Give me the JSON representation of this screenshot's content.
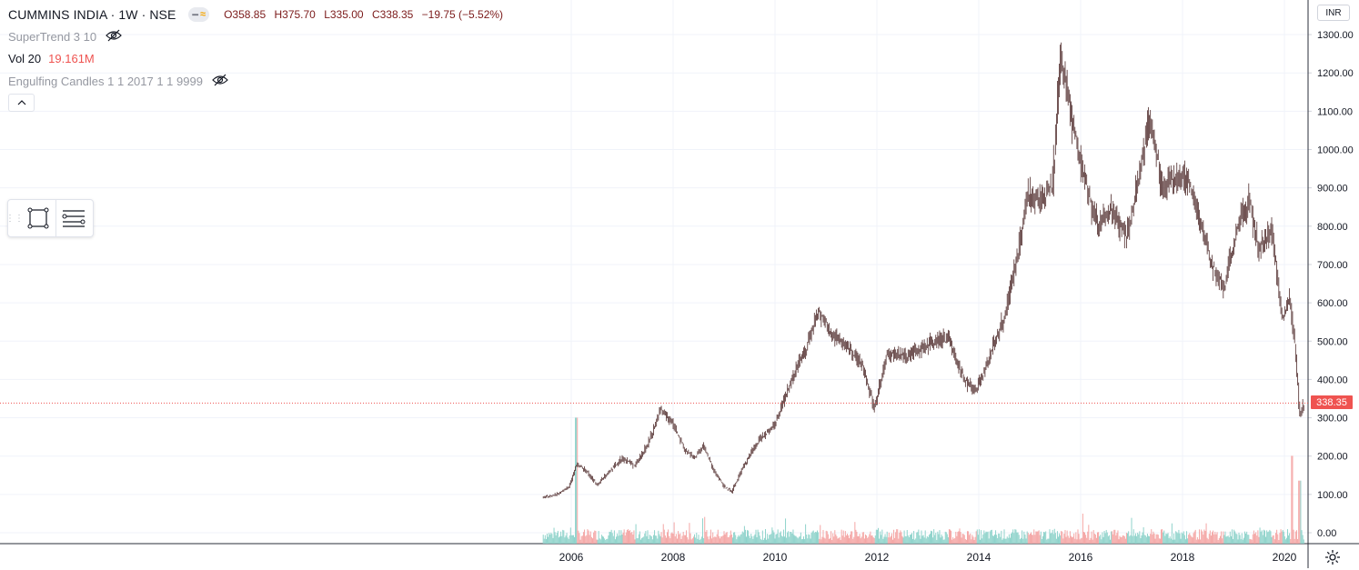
{
  "header": {
    "title": "CUMMINS INDIA · 1W · NSE",
    "ohlc": {
      "open": "O358.85",
      "high": "H375.70",
      "low": "L335.00",
      "close": "C338.35",
      "change": "−19.75 (−5.52%)"
    }
  },
  "indicators": {
    "supertrend": "SuperTrend 3 10",
    "vol_label": "Vol 20",
    "vol_value": "19.161M",
    "engulfing": "Engulfing Candles 1 1 2017 1 1 9999"
  },
  "price_axis": {
    "currency": "INR",
    "ticks": [
      "1300.00",
      "1200.00",
      "1100.00",
      "1000.00",
      "900.00",
      "800.00",
      "700.00",
      "600.00",
      "500.00",
      "400.00",
      "300.00",
      "200.00",
      "100.00",
      "0.00"
    ],
    "last_price": "338.35"
  },
  "time_axis": {
    "ticks": [
      "2006",
      "2008",
      "2010",
      "2012",
      "2014",
      "2016",
      "2018",
      "2020"
    ]
  },
  "colors": {
    "up": "#26a69a",
    "down": "#ef5350",
    "candle": "#4e2a2a",
    "last_line": "#ef5350",
    "grid": "#f0f3fa"
  },
  "icons": {
    "hide": "eye-off-icon",
    "collapse": "chevron-up-icon",
    "rect": "rectangle-tool-icon",
    "settings": "settings-lines-icon",
    "gear": "gear-icon"
  },
  "chart_data": {
    "type": "candlestick",
    "interval": "1W",
    "ylim": [
      0,
      1300
    ],
    "xlim": [
      2005.4,
      2020.5
    ],
    "price_path": [
      [
        2005.45,
        92
      ],
      [
        2005.7,
        100
      ],
      [
        2005.95,
        118
      ],
      [
        2006.1,
        180
      ],
      [
        2006.3,
        160
      ],
      [
        2006.5,
        125
      ],
      [
        2006.75,
        160
      ],
      [
        2007.0,
        195
      ],
      [
        2007.25,
        175
      ],
      [
        2007.5,
        230
      ],
      [
        2007.75,
        320
      ],
      [
        2008.0,
        285
      ],
      [
        2008.2,
        220
      ],
      [
        2008.4,
        195
      ],
      [
        2008.6,
        225
      ],
      [
        2008.8,
        160
      ],
      [
        2009.0,
        120
      ],
      [
        2009.15,
        108
      ],
      [
        2009.4,
        180
      ],
      [
        2009.7,
        245
      ],
      [
        2010.0,
        285
      ],
      [
        2010.3,
        390
      ],
      [
        2010.6,
        480
      ],
      [
        2010.85,
        575
      ],
      [
        2011.1,
        520
      ],
      [
        2011.4,
        490
      ],
      [
        2011.7,
        440
      ],
      [
        2011.95,
        325
      ],
      [
        2012.2,
        470
      ],
      [
        2012.5,
        460
      ],
      [
        2012.8,
        475
      ],
      [
        2013.1,
        495
      ],
      [
        2013.4,
        510
      ],
      [
        2013.7,
        400
      ],
      [
        2013.95,
        370
      ],
      [
        2014.2,
        460
      ],
      [
        2014.5,
        560
      ],
      [
        2014.75,
        720
      ],
      [
        2014.95,
        880
      ],
      [
        2015.2,
        870
      ],
      [
        2015.45,
        910
      ],
      [
        2015.6,
        1240
      ],
      [
        2015.85,
        1060
      ],
      [
        2016.1,
        900
      ],
      [
        2016.35,
        800
      ],
      [
        2016.6,
        850
      ],
      [
        2016.9,
        770
      ],
      [
        2017.1,
        900
      ],
      [
        2017.35,
        1085
      ],
      [
        2017.6,
        900
      ],
      [
        2017.85,
        930
      ],
      [
        2018.1,
        930
      ],
      [
        2018.35,
        800
      ],
      [
        2018.6,
        690
      ],
      [
        2018.8,
        640
      ],
      [
        2019.05,
        780
      ],
      [
        2019.3,
        870
      ],
      [
        2019.5,
        740
      ],
      [
        2019.75,
        790
      ],
      [
        2019.95,
        560
      ],
      [
        2020.1,
        610
      ],
      [
        2020.2,
        490
      ],
      [
        2020.3,
        300
      ],
      [
        2020.38,
        338
      ]
    ],
    "volume_spikes_M": [
      [
        2006.1,
        330
      ],
      [
        2020.15,
        230
      ],
      [
        2020.3,
        165
      ]
    ],
    "last_value": 338.35
  }
}
